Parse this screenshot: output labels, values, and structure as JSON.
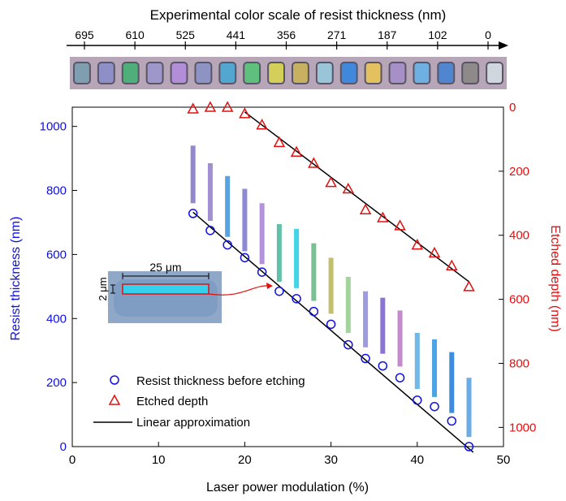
{
  "chart_data": {
    "type": "scatter",
    "top_scale": {
      "title": "Experimental color scale of resist thickness (nm)",
      "tick_labels": [
        "695",
        "610",
        "525",
        "441",
        "356",
        "271",
        "187",
        "102",
        "0"
      ],
      "swatch_colors": [
        "#7f9fb0",
        "#8f8fc8",
        "#4fae7a",
        "#9e97c9",
        "#b28ed9",
        "#8d94c4",
        "#52a6d0",
        "#5fc07e",
        "#d4cf5a",
        "#c7b060",
        "#9ac4d8",
        "#3f88dc",
        "#e3c060",
        "#a78fc8",
        "#6fb0e2",
        "#4f86cf",
        "#8e8a8a",
        "#cfd6de"
      ]
    },
    "x_axis": {
      "label": "Laser power modulation (%)",
      "range": [
        0,
        50
      ],
      "ticks": [
        0,
        10,
        20,
        30,
        40,
        50
      ]
    },
    "y_left": {
      "label": "Resist thickness (nm)",
      "range": [
        0,
        1060
      ],
      "ticks": [
        0,
        200,
        400,
        600,
        800,
        1000
      ],
      "color": "#1010e0"
    },
    "y_right": {
      "label": "Etched depth (nm)",
      "range": [
        0,
        1060
      ],
      "inverted": true,
      "ticks": [
        0,
        200,
        400,
        600,
        800,
        1000
      ],
      "color": "#e01010"
    },
    "series": [
      {
        "name": "Resist thickness before etching",
        "axis": "left",
        "marker": "circle",
        "color": "#1010e0",
        "x": [
          14,
          16,
          18,
          20,
          22,
          24,
          26,
          28,
          30,
          32,
          34,
          36,
          38,
          40,
          42,
          44,
          46
        ],
        "y": [
          728,
          675,
          630,
          590,
          545,
          485,
          462,
          422,
          382,
          318,
          275,
          252,
          215,
          145,
          125,
          80,
          0
        ]
      },
      {
        "name": "Etched depth",
        "axis": "right",
        "marker": "triangle",
        "color": "#e01010",
        "x": [
          14,
          16,
          18,
          20,
          22,
          24,
          26,
          28,
          30,
          32,
          34,
          36,
          38,
          40,
          42,
          44,
          46
        ],
        "y": [
          5,
          0,
          0,
          20,
          55,
          110,
          140,
          175,
          235,
          255,
          320,
          345,
          370,
          430,
          455,
          495,
          560
        ]
      },
      {
        "name": "Linear approximation",
        "marker": "line",
        "color": "#000000",
        "segments": [
          {
            "axis": "left",
            "x": [
              14,
              46.5
            ],
            "y": [
              732,
              -18
            ]
          },
          {
            "axis": "right",
            "x": [
              20,
              46
            ],
            "y": [
              15,
              545
            ]
          }
        ]
      }
    ],
    "color_bars": {
      "axis": "left",
      "x": [
        14,
        16,
        18,
        20,
        22,
        24,
        26,
        28,
        30,
        32,
        34,
        36,
        38,
        40,
        42,
        44,
        46
      ],
      "y_low": [
        760,
        705,
        655,
        610,
        570,
        515,
        495,
        455,
        415,
        355,
        310,
        290,
        250,
        180,
        155,
        105,
        30
      ],
      "y_high": [
        940,
        885,
        845,
        805,
        760,
        695,
        680,
        635,
        590,
        530,
        485,
        465,
        425,
        355,
        335,
        295,
        215
      ],
      "colors": [
        "#9388ce",
        "#a28fd2",
        "#5aa3e0",
        "#8e8ad6",
        "#b492da",
        "#62c0a8",
        "#3fd4e8",
        "#7ac092",
        "#c2c06e",
        "#a3d49c",
        "#9e9cdc",
        "#8c74d4",
        "#c28cca",
        "#6fb8e8",
        "#4aa4e6",
        "#3e8be0",
        "#6aace6"
      ]
    },
    "inset": {
      "label_length": "25 μm",
      "label_width": "2 μm"
    },
    "legend": {
      "placement": "lower-left",
      "items": [
        "Resist thickness before etching",
        "Etched depth",
        "Linear approximation"
      ]
    }
  }
}
